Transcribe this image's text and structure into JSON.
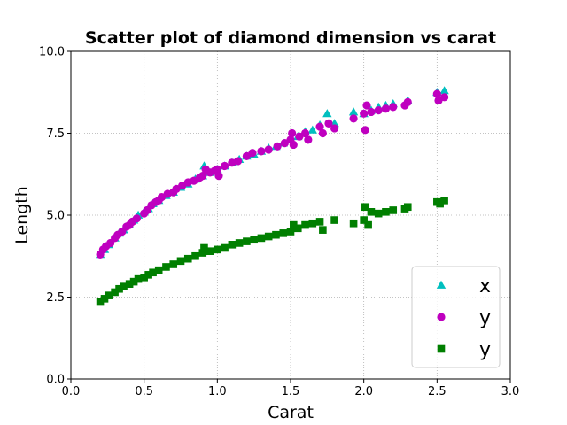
{
  "chart_data": {
    "type": "scatter",
    "title": "Scatter plot of diamond dimension vs carat",
    "xlabel": "Carat",
    "ylabel": "Length",
    "xlim": [
      0.0,
      3.0
    ],
    "ylim": [
      0.0,
      10.0
    ],
    "xticks": [
      0.0,
      0.5,
      1.0,
      1.5,
      2.0,
      2.5,
      3.0
    ],
    "xtick_labels": [
      "0.0",
      "0.5",
      "1.0",
      "1.5",
      "2.0",
      "2.5",
      "3.0"
    ],
    "yticks": [
      0.0,
      2.5,
      5.0,
      7.5,
      10.0
    ],
    "ytick_labels": [
      "0.0",
      "2.5",
      "5.0",
      "7.5",
      "10.0"
    ],
    "grid": true,
    "legend_position": "lower-right",
    "series": [
      {
        "name": "x",
        "marker": "triangle",
        "color": "#00bfbf",
        "points": [
          [
            0.2,
            3.8
          ],
          [
            0.23,
            3.95
          ],
          [
            0.26,
            4.1
          ],
          [
            0.3,
            4.3
          ],
          [
            0.33,
            4.45
          ],
          [
            0.36,
            4.55
          ],
          [
            0.4,
            4.7
          ],
          [
            0.43,
            4.85
          ],
          [
            0.46,
            5.0
          ],
          [
            0.5,
            5.1
          ],
          [
            0.53,
            5.2
          ],
          [
            0.56,
            5.35
          ],
          [
            0.6,
            5.45
          ],
          [
            0.65,
            5.6
          ],
          [
            0.7,
            5.7
          ],
          [
            0.75,
            5.85
          ],
          [
            0.8,
            5.95
          ],
          [
            0.85,
            6.1
          ],
          [
            0.9,
            6.2
          ],
          [
            0.91,
            6.5
          ],
          [
            0.95,
            6.3
          ],
          [
            1.0,
            6.4
          ],
          [
            1.05,
            6.5
          ],
          [
            1.1,
            6.6
          ],
          [
            1.15,
            6.7
          ],
          [
            1.2,
            6.8
          ],
          [
            1.25,
            6.85
          ],
          [
            1.3,
            6.95
          ],
          [
            1.35,
            7.05
          ],
          [
            1.4,
            7.1
          ],
          [
            1.45,
            7.2
          ],
          [
            1.5,
            7.3
          ],
          [
            1.55,
            7.4
          ],
          [
            1.6,
            7.55
          ],
          [
            1.65,
            7.6
          ],
          [
            1.7,
            7.75
          ],
          [
            1.75,
            8.1
          ],
          [
            1.8,
            7.8
          ],
          [
            1.93,
            8.15
          ],
          [
            2.0,
            8.1
          ],
          [
            2.05,
            8.2
          ],
          [
            2.1,
            8.3
          ],
          [
            2.15,
            8.35
          ],
          [
            2.2,
            8.4
          ],
          [
            2.3,
            8.5
          ],
          [
            2.5,
            8.75
          ],
          [
            2.55,
            8.8
          ]
        ]
      },
      {
        "name": "y",
        "marker": "circle",
        "color": "#bf00bf",
        "points": [
          [
            0.2,
            3.8
          ],
          [
            0.22,
            3.95
          ],
          [
            0.24,
            4.05
          ],
          [
            0.27,
            4.15
          ],
          [
            0.3,
            4.3
          ],
          [
            0.32,
            4.4
          ],
          [
            0.35,
            4.5
          ],
          [
            0.38,
            4.65
          ],
          [
            0.4,
            4.7
          ],
          [
            0.42,
            4.8
          ],
          [
            0.45,
            4.9
          ],
          [
            0.5,
            5.05
          ],
          [
            0.52,
            5.15
          ],
          [
            0.55,
            5.3
          ],
          [
            0.58,
            5.4
          ],
          [
            0.6,
            5.45
          ],
          [
            0.62,
            5.55
          ],
          [
            0.66,
            5.65
          ],
          [
            0.7,
            5.7
          ],
          [
            0.72,
            5.8
          ],
          [
            0.76,
            5.9
          ],
          [
            0.8,
            6.0
          ],
          [
            0.84,
            6.05
          ],
          [
            0.88,
            6.15
          ],
          [
            0.9,
            6.2
          ],
          [
            0.92,
            6.4
          ],
          [
            0.95,
            6.3
          ],
          [
            0.98,
            6.35
          ],
          [
            1.0,
            6.4
          ],
          [
            1.01,
            6.2
          ],
          [
            1.05,
            6.5
          ],
          [
            1.1,
            6.6
          ],
          [
            1.14,
            6.65
          ],
          [
            1.2,
            6.8
          ],
          [
            1.24,
            6.9
          ],
          [
            1.3,
            6.95
          ],
          [
            1.35,
            7.0
          ],
          [
            1.41,
            7.1
          ],
          [
            1.46,
            7.2
          ],
          [
            1.5,
            7.3
          ],
          [
            1.51,
            7.5
          ],
          [
            1.52,
            7.15
          ],
          [
            1.56,
            7.4
          ],
          [
            1.6,
            7.5
          ],
          [
            1.62,
            7.3
          ],
          [
            1.7,
            7.7
          ],
          [
            1.72,
            7.5
          ],
          [
            1.76,
            7.8
          ],
          [
            1.8,
            7.65
          ],
          [
            1.93,
            7.95
          ],
          [
            2.0,
            8.1
          ],
          [
            2.01,
            7.6
          ],
          [
            2.02,
            8.35
          ],
          [
            2.05,
            8.15
          ],
          [
            2.1,
            8.2
          ],
          [
            2.15,
            8.25
          ],
          [
            2.2,
            8.3
          ],
          [
            2.28,
            8.35
          ],
          [
            2.3,
            8.45
          ],
          [
            2.5,
            8.7
          ],
          [
            2.51,
            8.5
          ],
          [
            2.55,
            8.6
          ]
        ]
      },
      {
        "name": "y",
        "marker": "square",
        "color": "#007f00",
        "points": [
          [
            0.2,
            2.35
          ],
          [
            0.23,
            2.45
          ],
          [
            0.26,
            2.55
          ],
          [
            0.3,
            2.65
          ],
          [
            0.33,
            2.75
          ],
          [
            0.36,
            2.82
          ],
          [
            0.4,
            2.9
          ],
          [
            0.43,
            2.97
          ],
          [
            0.46,
            3.05
          ],
          [
            0.5,
            3.1
          ],
          [
            0.53,
            3.18
          ],
          [
            0.56,
            3.25
          ],
          [
            0.6,
            3.32
          ],
          [
            0.65,
            3.42
          ],
          [
            0.7,
            3.5
          ],
          [
            0.75,
            3.6
          ],
          [
            0.8,
            3.67
          ],
          [
            0.85,
            3.75
          ],
          [
            0.9,
            3.85
          ],
          [
            0.91,
            4.0
          ],
          [
            0.95,
            3.9
          ],
          [
            1.0,
            3.95
          ],
          [
            1.05,
            4.0
          ],
          [
            1.1,
            4.1
          ],
          [
            1.15,
            4.15
          ],
          [
            1.2,
            4.2
          ],
          [
            1.25,
            4.25
          ],
          [
            1.3,
            4.3
          ],
          [
            1.35,
            4.35
          ],
          [
            1.4,
            4.4
          ],
          [
            1.45,
            4.45
          ],
          [
            1.5,
            4.5
          ],
          [
            1.52,
            4.7
          ],
          [
            1.55,
            4.6
          ],
          [
            1.6,
            4.7
          ],
          [
            1.65,
            4.75
          ],
          [
            1.7,
            4.8
          ],
          [
            1.72,
            4.55
          ],
          [
            1.8,
            4.85
          ],
          [
            1.93,
            4.75
          ],
          [
            2.0,
            4.85
          ],
          [
            2.01,
            5.25
          ],
          [
            2.03,
            4.7
          ],
          [
            2.05,
            5.1
          ],
          [
            2.1,
            5.05
          ],
          [
            2.15,
            5.1
          ],
          [
            2.2,
            5.15
          ],
          [
            2.28,
            5.2
          ],
          [
            2.3,
            5.25
          ],
          [
            2.5,
            5.4
          ],
          [
            2.52,
            5.35
          ],
          [
            2.55,
            5.45
          ]
        ]
      }
    ]
  }
}
